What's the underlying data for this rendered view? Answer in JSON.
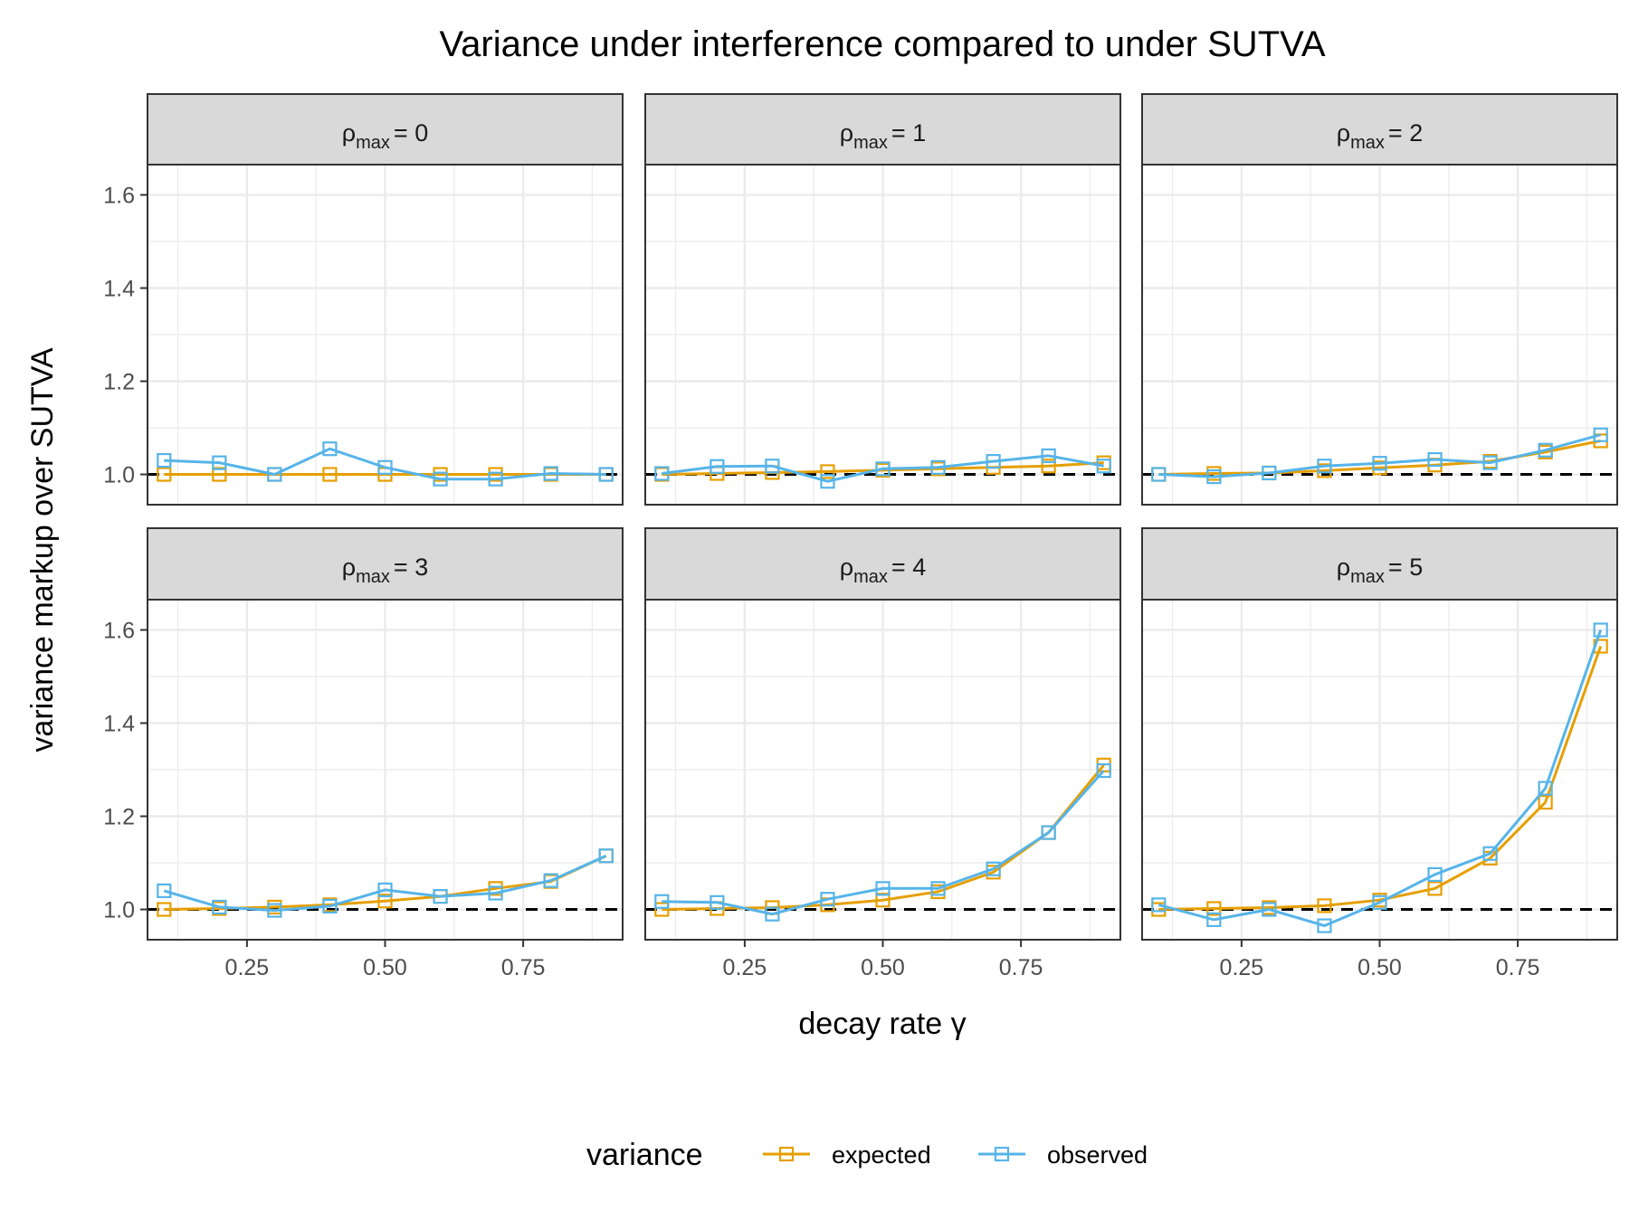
{
  "chart_data": {
    "type": "line",
    "title": "Variance under interference compared to under SUTVA",
    "xlabel": "decay rate γ",
    "ylabel": "variance markup over SUTVA",
    "xlim": [
      0.07,
      0.93
    ],
    "ylim": [
      0.935,
      1.665
    ],
    "xticks": [
      0.25,
      0.5,
      0.75
    ],
    "xtick_labels": [
      "0.25",
      "0.50",
      "0.75"
    ],
    "yticks": [
      1.0,
      1.2,
      1.4,
      1.6
    ],
    "ytick_labels": [
      "1.0",
      "1.2",
      "1.4",
      "1.6"
    ],
    "reference_line": 1.0,
    "grid": true,
    "x": [
      0.1,
      0.2,
      0.3,
      0.4,
      0.5,
      0.6,
      0.7,
      0.8,
      0.9
    ],
    "legend": {
      "title": "variance",
      "entries": [
        "expected",
        "observed"
      ],
      "position": "bottom"
    },
    "colors": {
      "expected": "#E69F00",
      "observed": "#56B4E9",
      "strip_fill": "#d9d9d9",
      "panel_border": "#333333",
      "grid": "#ebebeb",
      "reference": "#000000"
    },
    "panels": [
      {
        "label": "ρmax = 0",
        "rho_symbol": "ρ",
        "rho_subscript": "max",
        "rho_value": "= 0",
        "series": [
          {
            "name": "expected",
            "values": [
              1.0,
              1.0,
              1.0,
              1.0,
              1.0,
              1.0,
              1.0,
              1.0,
              1.0
            ]
          },
          {
            "name": "observed",
            "values": [
              1.03,
              1.025,
              1.0,
              1.055,
              1.015,
              0.99,
              0.99,
              1.002,
              1.0
            ]
          }
        ]
      },
      {
        "label": "ρmax = 1",
        "rho_symbol": "ρ",
        "rho_subscript": "max",
        "rho_value": "= 1",
        "series": [
          {
            "name": "expected",
            "values": [
              1.0,
              1.002,
              1.004,
              1.006,
              1.009,
              1.012,
              1.015,
              1.018,
              1.025
            ]
          },
          {
            "name": "observed",
            "values": [
              1.002,
              1.017,
              1.018,
              0.985,
              1.012,
              1.015,
              1.028,
              1.04,
              1.018
            ]
          }
        ]
      },
      {
        "label": "ρmax = 2",
        "rho_symbol": "ρ",
        "rho_subscript": "max",
        "rho_value": "= 2",
        "series": [
          {
            "name": "expected",
            "values": [
              1.0,
              1.002,
              1.003,
              1.008,
              1.014,
              1.02,
              1.028,
              1.048,
              1.072
            ]
          },
          {
            "name": "observed",
            "values": [
              1.0,
              0.995,
              1.003,
              1.018,
              1.024,
              1.032,
              1.025,
              1.052,
              1.085
            ]
          }
        ]
      },
      {
        "label": "ρmax = 3",
        "rho_symbol": "ρ",
        "rho_subscript": "max",
        "rho_value": "= 3",
        "series": [
          {
            "name": "expected",
            "values": [
              1.0,
              1.002,
              1.005,
              1.01,
              1.018,
              1.028,
              1.045,
              1.06,
              1.115
            ]
          },
          {
            "name": "observed",
            "values": [
              1.04,
              1.005,
              0.998,
              1.007,
              1.042,
              1.028,
              1.035,
              1.062,
              1.115
            ]
          }
        ]
      },
      {
        "label": "ρmax = 4",
        "rho_symbol": "ρ",
        "rho_subscript": "max",
        "rho_value": "= 4",
        "series": [
          {
            "name": "expected",
            "values": [
              1.0,
              1.002,
              1.004,
              1.01,
              1.02,
              1.038,
              1.08,
              1.165,
              1.31
            ]
          },
          {
            "name": "observed",
            "values": [
              1.017,
              1.015,
              0.99,
              1.022,
              1.045,
              1.045,
              1.087,
              1.165,
              1.298
            ]
          }
        ]
      },
      {
        "label": "ρmax = 5",
        "rho_symbol": "ρ",
        "rho_subscript": "max",
        "rho_value": "= 5",
        "series": [
          {
            "name": "expected",
            "values": [
              1.0,
              1.002,
              1.004,
              1.008,
              1.02,
              1.045,
              1.11,
              1.23,
              1.565
            ]
          },
          {
            "name": "observed",
            "values": [
              1.01,
              0.978,
              1.0,
              0.965,
              1.015,
              1.075,
              1.12,
              1.26,
              1.6
            ]
          }
        ]
      }
    ]
  }
}
